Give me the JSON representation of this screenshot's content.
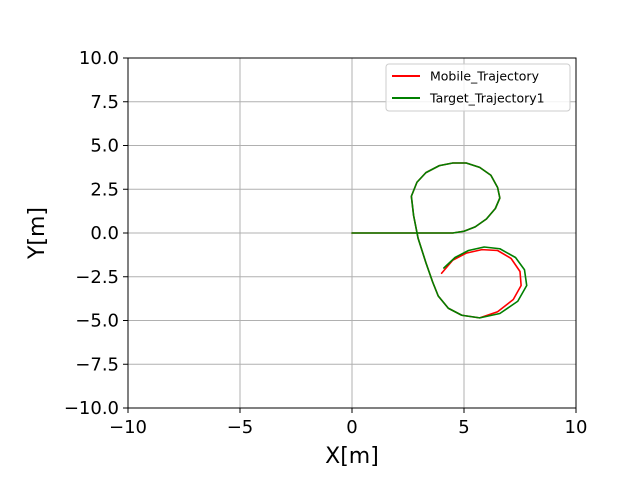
{
  "chart_data": {
    "type": "line",
    "title": "",
    "xlabel": "X[m]",
    "ylabel": "Y[m]",
    "xlim": [
      -10,
      10
    ],
    "ylim": [
      -10,
      10
    ],
    "grid": true,
    "legend_position": "top-right",
    "x_ticks": [
      -10,
      -5,
      0,
      5,
      10
    ],
    "x_tick_labels": [
      "−10",
      "−5",
      "0",
      "5",
      "10"
    ],
    "y_ticks": [
      10,
      7.5,
      5,
      2.5,
      0,
      -2.5,
      -5,
      -7.5,
      -10
    ],
    "y_tick_labels": [
      "10.0",
      "7.5",
      "5.0",
      "2.5",
      "0.0",
      "−2.5",
      "−5.0",
      "−7.5",
      "−10.0"
    ],
    "series": [
      {
        "name": "Mobile_Trajectory",
        "color": "#ff0000",
        "x": [
          0.0,
          1.0,
          2.0,
          3.0,
          4.0,
          4.5,
          5.0,
          5.5,
          6.0,
          6.4,
          6.6,
          6.5,
          6.2,
          5.7,
          5.1,
          4.5,
          3.9,
          3.3,
          2.9,
          2.65,
          2.75,
          2.95,
          3.3,
          3.6,
          3.85,
          4.3,
          4.9,
          5.7,
          6.5,
          7.2,
          7.55,
          7.5,
          7.1,
          6.5,
          5.8,
          5.1,
          4.5,
          4.0
        ],
        "y": [
          0.0,
          0.0,
          0.0,
          0.0,
          0.0,
          0.0,
          0.1,
          0.35,
          0.8,
          1.4,
          2.0,
          2.6,
          3.3,
          3.75,
          4.0,
          4.0,
          3.85,
          3.45,
          2.9,
          2.1,
          1.0,
          -0.3,
          -1.7,
          -2.8,
          -3.6,
          -4.3,
          -4.7,
          -4.85,
          -4.5,
          -3.8,
          -3.0,
          -2.2,
          -1.45,
          -1.0,
          -0.95,
          -1.15,
          -1.55,
          -2.3
        ]
      },
      {
        "name": "Target_Trajectory1",
        "color": "#008000",
        "x": [
          0.0,
          1.0,
          2.0,
          3.0,
          4.0,
          4.5,
          5.0,
          5.5,
          6.0,
          6.4,
          6.6,
          6.5,
          6.2,
          5.7,
          5.1,
          4.5,
          3.9,
          3.3,
          2.9,
          2.65,
          2.75,
          2.95,
          3.3,
          3.6,
          3.85,
          4.3,
          4.9,
          5.7,
          6.6,
          7.4,
          7.8,
          7.7,
          7.3,
          6.6,
          5.9,
          5.2,
          4.6,
          4.1
        ],
        "y": [
          0.0,
          0.0,
          0.0,
          0.0,
          0.0,
          0.0,
          0.1,
          0.35,
          0.8,
          1.4,
          2.0,
          2.6,
          3.3,
          3.75,
          4.0,
          4.0,
          3.85,
          3.45,
          2.9,
          2.1,
          1.0,
          -0.3,
          -1.7,
          -2.8,
          -3.6,
          -4.3,
          -4.7,
          -4.85,
          -4.6,
          -3.9,
          -3.0,
          -2.1,
          -1.4,
          -0.9,
          -0.8,
          -1.0,
          -1.4,
          -2.0
        ]
      }
    ]
  }
}
